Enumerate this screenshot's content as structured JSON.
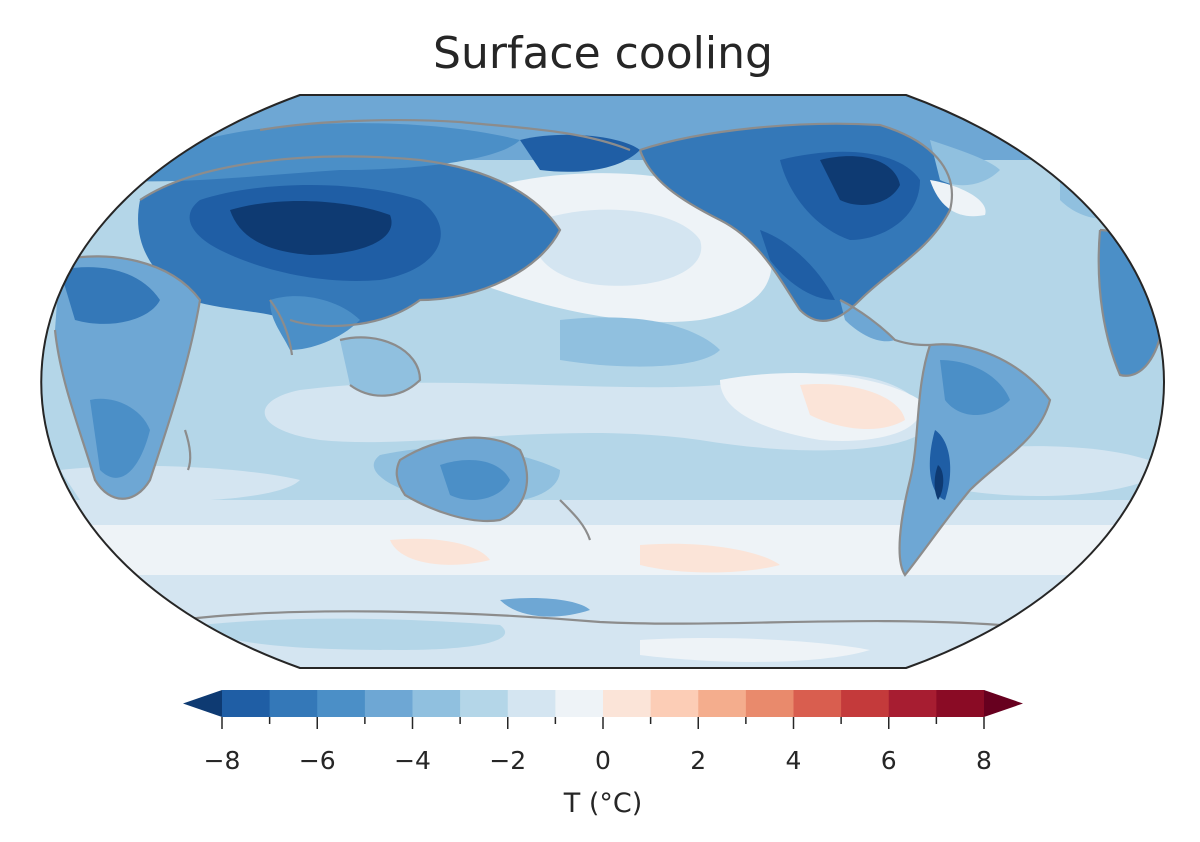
{
  "title": "Surface cooling",
  "projection": "robinson",
  "central_longitude": 180,
  "colorbar": {
    "label": "T (°C)",
    "min": -8,
    "max": 8,
    "step": 1,
    "extend": "both",
    "colormap": "RdBu_r",
    "ticks": [
      -8,
      -6,
      -4,
      -2,
      0,
      2,
      4,
      6,
      8
    ],
    "tick_labels": [
      "−8",
      "−6",
      "−4",
      "−2",
      "0",
      "2",
      "4",
      "6",
      "8"
    ],
    "colors": [
      "#1f5ea5",
      "#3478b8",
      "#4b8fc7",
      "#6ea7d4",
      "#90c0df",
      "#b4d6e8",
      "#d4e5f1",
      "#eef3f7",
      "#fbe4d8",
      "#fccdb6",
      "#f4ad8d",
      "#e98a6c",
      "#d95e4f",
      "#c43a3b",
      "#a71d31",
      "#8a0b25"
    ],
    "under_color": "#0e3a72",
    "over_color": "#67001f"
  },
  "land_color": "#8c8c8c"
}
